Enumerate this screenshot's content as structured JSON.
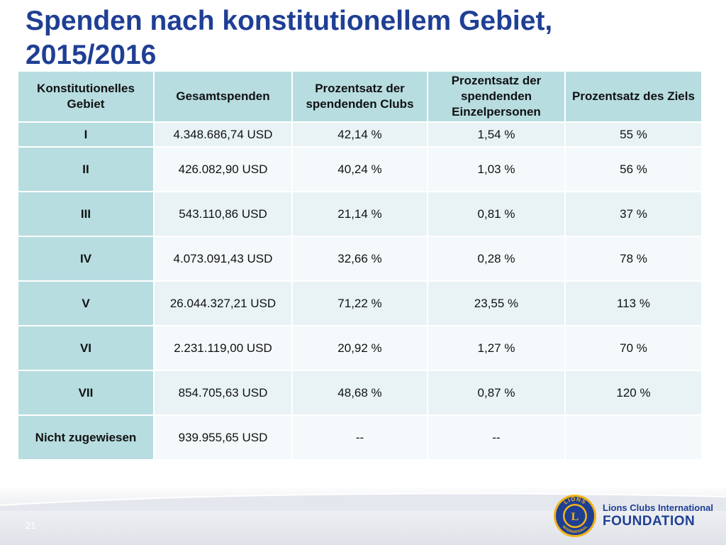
{
  "slide": {
    "title_line1": "Spenden nach konstitutionellem Gebiet,",
    "title_line2": "2015/2016",
    "number": "21"
  },
  "table": {
    "headers": [
      "Konstitutionelles Gebiet",
      "Gesamtspenden",
      "Prozentsatz der spendenden Clubs",
      "Prozentsatz der spendenden Einzelpersonen",
      "Prozentsatz des Ziels"
    ],
    "rows": [
      {
        "area": "I",
        "total": "4.348.686,74 USD",
        "clubs": "42,14 %",
        "individuals": "1,54 %",
        "goal": "55 %"
      },
      {
        "area": "II",
        "total": "426.082,90 USD",
        "clubs": "40,24 %",
        "individuals": "1,03 %",
        "goal": "56 %"
      },
      {
        "area": "III",
        "total": "543.110,86 USD",
        "clubs": "21,14 %",
        "individuals": "0,81 %",
        "goal": "37 %"
      },
      {
        "area": "IV",
        "total": "4.073.091,43 USD",
        "clubs": "32,66 %",
        "individuals": "0,28 %",
        "goal": "78 %"
      },
      {
        "area": "V",
        "total": "26.044.327,21 USD",
        "clubs": "71,22 %",
        "individuals": "23,55 %",
        "goal": "113 %"
      },
      {
        "area": "VI",
        "total": "2.231.119,00 USD",
        "clubs": "20,92 %",
        "individuals": "1,27 %",
        "goal": "70 %"
      },
      {
        "area": "VII",
        "total": "854.705,63 USD",
        "clubs": "48,68 %",
        "individuals": "0,87 %",
        "goal": "120 %"
      },
      {
        "area": "Nicht zugewiesen",
        "total": "939.955,65 USD",
        "clubs": "--",
        "individuals": "--",
        "goal": ""
      }
    ]
  },
  "logo": {
    "emblem_text": "LIONS",
    "emblem_bottom_text": "INTERNATIONAL",
    "emblem_letter": "L",
    "line1": "Lions Clubs International",
    "line2": "FOUNDATION"
  },
  "colors": {
    "title": "#1f3f94",
    "header_fill": "#b7dde0",
    "row_fill_odd": "#e9f3f5",
    "row_fill_even": "#f4f9fb",
    "logo_gold": "#f2b517",
    "logo_navy": "#1f3f94"
  }
}
